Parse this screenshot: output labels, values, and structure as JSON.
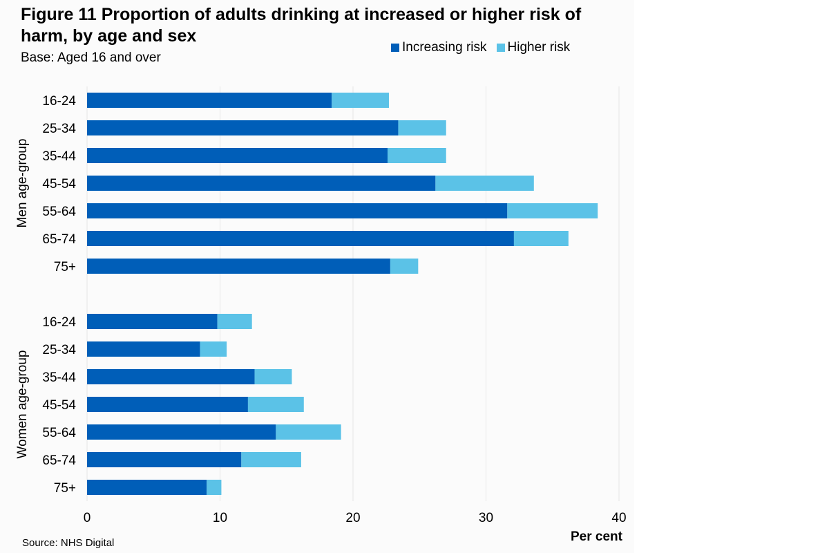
{
  "chart_data": {
    "type": "bar",
    "orientation": "horizontal",
    "stacked": true,
    "title": "Figure 11  Proportion of adults drinking at increased or higher risk of harm, by age and sex",
    "subtitle": "Base: Aged 16 and over",
    "xlabel": "Per cent",
    "source": "Source: NHS Digital",
    "xlim": [
      0,
      40
    ],
    "xticks": [
      0,
      10,
      20,
      30,
      40
    ],
    "grid": true,
    "legend_position": "top-right",
    "groups": [
      {
        "label": "Men age-group",
        "categories": [
          "16-24",
          "25-34",
          "35-44",
          "45-54",
          "55-64",
          "65-74",
          "75+"
        ],
        "series": [
          {
            "name": "Increasing risk",
            "values": [
              18.4,
              23.4,
              22.6,
              26.2,
              31.6,
              32.1,
              22.8
            ]
          },
          {
            "name": "Higher risk",
            "values": [
              4.3,
              3.6,
              4.4,
              7.4,
              6.8,
              4.1,
              2.1
            ]
          }
        ]
      },
      {
        "label": "Women age-group",
        "categories": [
          "16-24",
          "25-34",
          "35-44",
          "45-54",
          "55-64",
          "65-74",
          "75+"
        ],
        "series": [
          {
            "name": "Increasing risk",
            "values": [
              9.8,
              8.5,
              12.6,
              12.1,
              14.2,
              11.6,
              9.0
            ]
          },
          {
            "name": "Higher risk",
            "values": [
              2.6,
              2.0,
              2.8,
              4.2,
              4.9,
              4.5,
              1.1
            ]
          }
        ]
      }
    ],
    "colors": {
      "Increasing risk": "#005EB8",
      "Higher risk": "#5BC2E7"
    }
  }
}
